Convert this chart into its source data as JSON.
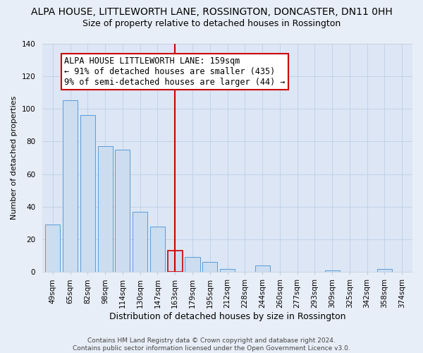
{
  "title": "ALPA HOUSE, LITTLEWORTH LANE, ROSSINGTON, DONCASTER, DN11 0HH",
  "subtitle": "Size of property relative to detached houses in Rossington",
  "xlabel": "Distribution of detached houses by size in Rossington",
  "ylabel": "Number of detached properties",
  "categories": [
    "49sqm",
    "65sqm",
    "82sqm",
    "98sqm",
    "114sqm",
    "130sqm",
    "147sqm",
    "163sqm",
    "179sqm",
    "195sqm",
    "212sqm",
    "228sqm",
    "244sqm",
    "260sqm",
    "277sqm",
    "293sqm",
    "309sqm",
    "325sqm",
    "342sqm",
    "358sqm",
    "374sqm"
  ],
  "values": [
    29,
    105,
    96,
    77,
    75,
    37,
    28,
    13,
    9,
    6,
    2,
    0,
    4,
    0,
    0,
    0,
    1,
    0,
    0,
    2,
    0
  ],
  "bar_color": "#ccddf0",
  "bar_edge_color": "#5b9bd5",
  "highlight_index": 7,
  "vline_color": "#cc0000",
  "annotation_title": "ALPA HOUSE LITTLEWORTH LANE: 159sqm",
  "annotation_line1": "← 91% of detached houses are smaller (435)",
  "annotation_line2": "9% of semi-detached houses are larger (44) →",
  "annotation_box_color": "#ffffff",
  "annotation_box_edge": "#cc0000",
  "footer_line1": "Contains HM Land Registry data © Crown copyright and database right 2024.",
  "footer_line2": "Contains public sector information licensed under the Open Government Licence v3.0.",
  "bg_color": "#e8eef7",
  "plot_bg_color": "#dce6f4",
  "ylim": [
    0,
    140
  ],
  "title_fontsize": 10,
  "subtitle_fontsize": 9,
  "xlabel_fontsize": 9,
  "ylabel_fontsize": 8,
  "tick_fontsize": 7.5,
  "footer_fontsize": 6.5,
  "annotation_fontsize": 8.5
}
